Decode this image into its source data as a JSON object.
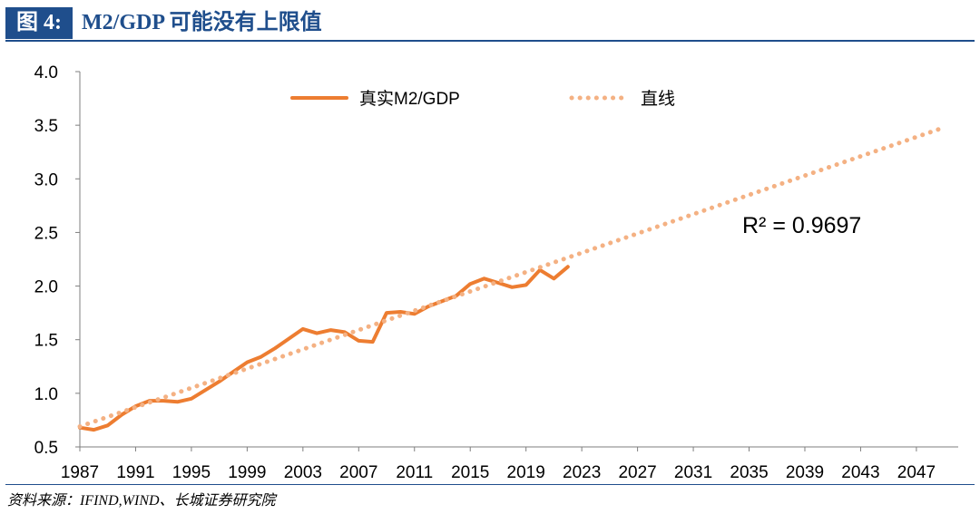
{
  "header": {
    "figure_tag": "图 4:",
    "title": "M2/GDP 可能没有上限值"
  },
  "source_note": "资料来源：IFIND,WIND、长城证券研究院",
  "chart_data": {
    "type": "line",
    "title": "",
    "xlabel": "",
    "ylabel": "",
    "xlim": [
      1987,
      2050
    ],
    "ylim": [
      0.5,
      4.0
    ],
    "y_ticks": [
      "0.5",
      "1.0",
      "1.5",
      "2.0",
      "2.5",
      "3.0",
      "3.5",
      "4.0"
    ],
    "x_ticks": [
      "1987",
      "1991",
      "1995",
      "1999",
      "2003",
      "2007",
      "2011",
      "2015",
      "2019",
      "2023",
      "2027",
      "2031",
      "2035",
      "2039",
      "2043",
      "2047"
    ],
    "legend_position": "top",
    "annotation": "R² = 0.9697",
    "series": [
      {
        "name": "真实M2/GDP",
        "style": "solid",
        "color": "#ED7D31",
        "x": [
          1987,
          1988,
          1989,
          1990,
          1991,
          1992,
          1993,
          1994,
          1995,
          1996,
          1997,
          1998,
          1999,
          2000,
          2001,
          2002,
          2003,
          2004,
          2005,
          2006,
          2007,
          2008,
          2009,
          2010,
          2011,
          2012,
          2013,
          2014,
          2015,
          2016,
          2017,
          2018,
          2019,
          2020,
          2021,
          2022
        ],
        "y": [
          0.68,
          0.66,
          0.7,
          0.8,
          0.88,
          0.93,
          0.93,
          0.92,
          0.95,
          1.03,
          1.11,
          1.2,
          1.29,
          1.34,
          1.42,
          1.51,
          1.6,
          1.56,
          1.59,
          1.57,
          1.49,
          1.48,
          1.75,
          1.76,
          1.74,
          1.81,
          1.86,
          1.91,
          2.02,
          2.07,
          2.03,
          1.99,
          2.01,
          2.15,
          2.07,
          2.18
        ]
      },
      {
        "name": "直线",
        "style": "dotted",
        "color": "#F4B183",
        "x": [
          1987,
          2049
        ],
        "y": [
          0.69,
          3.48
        ]
      }
    ]
  }
}
